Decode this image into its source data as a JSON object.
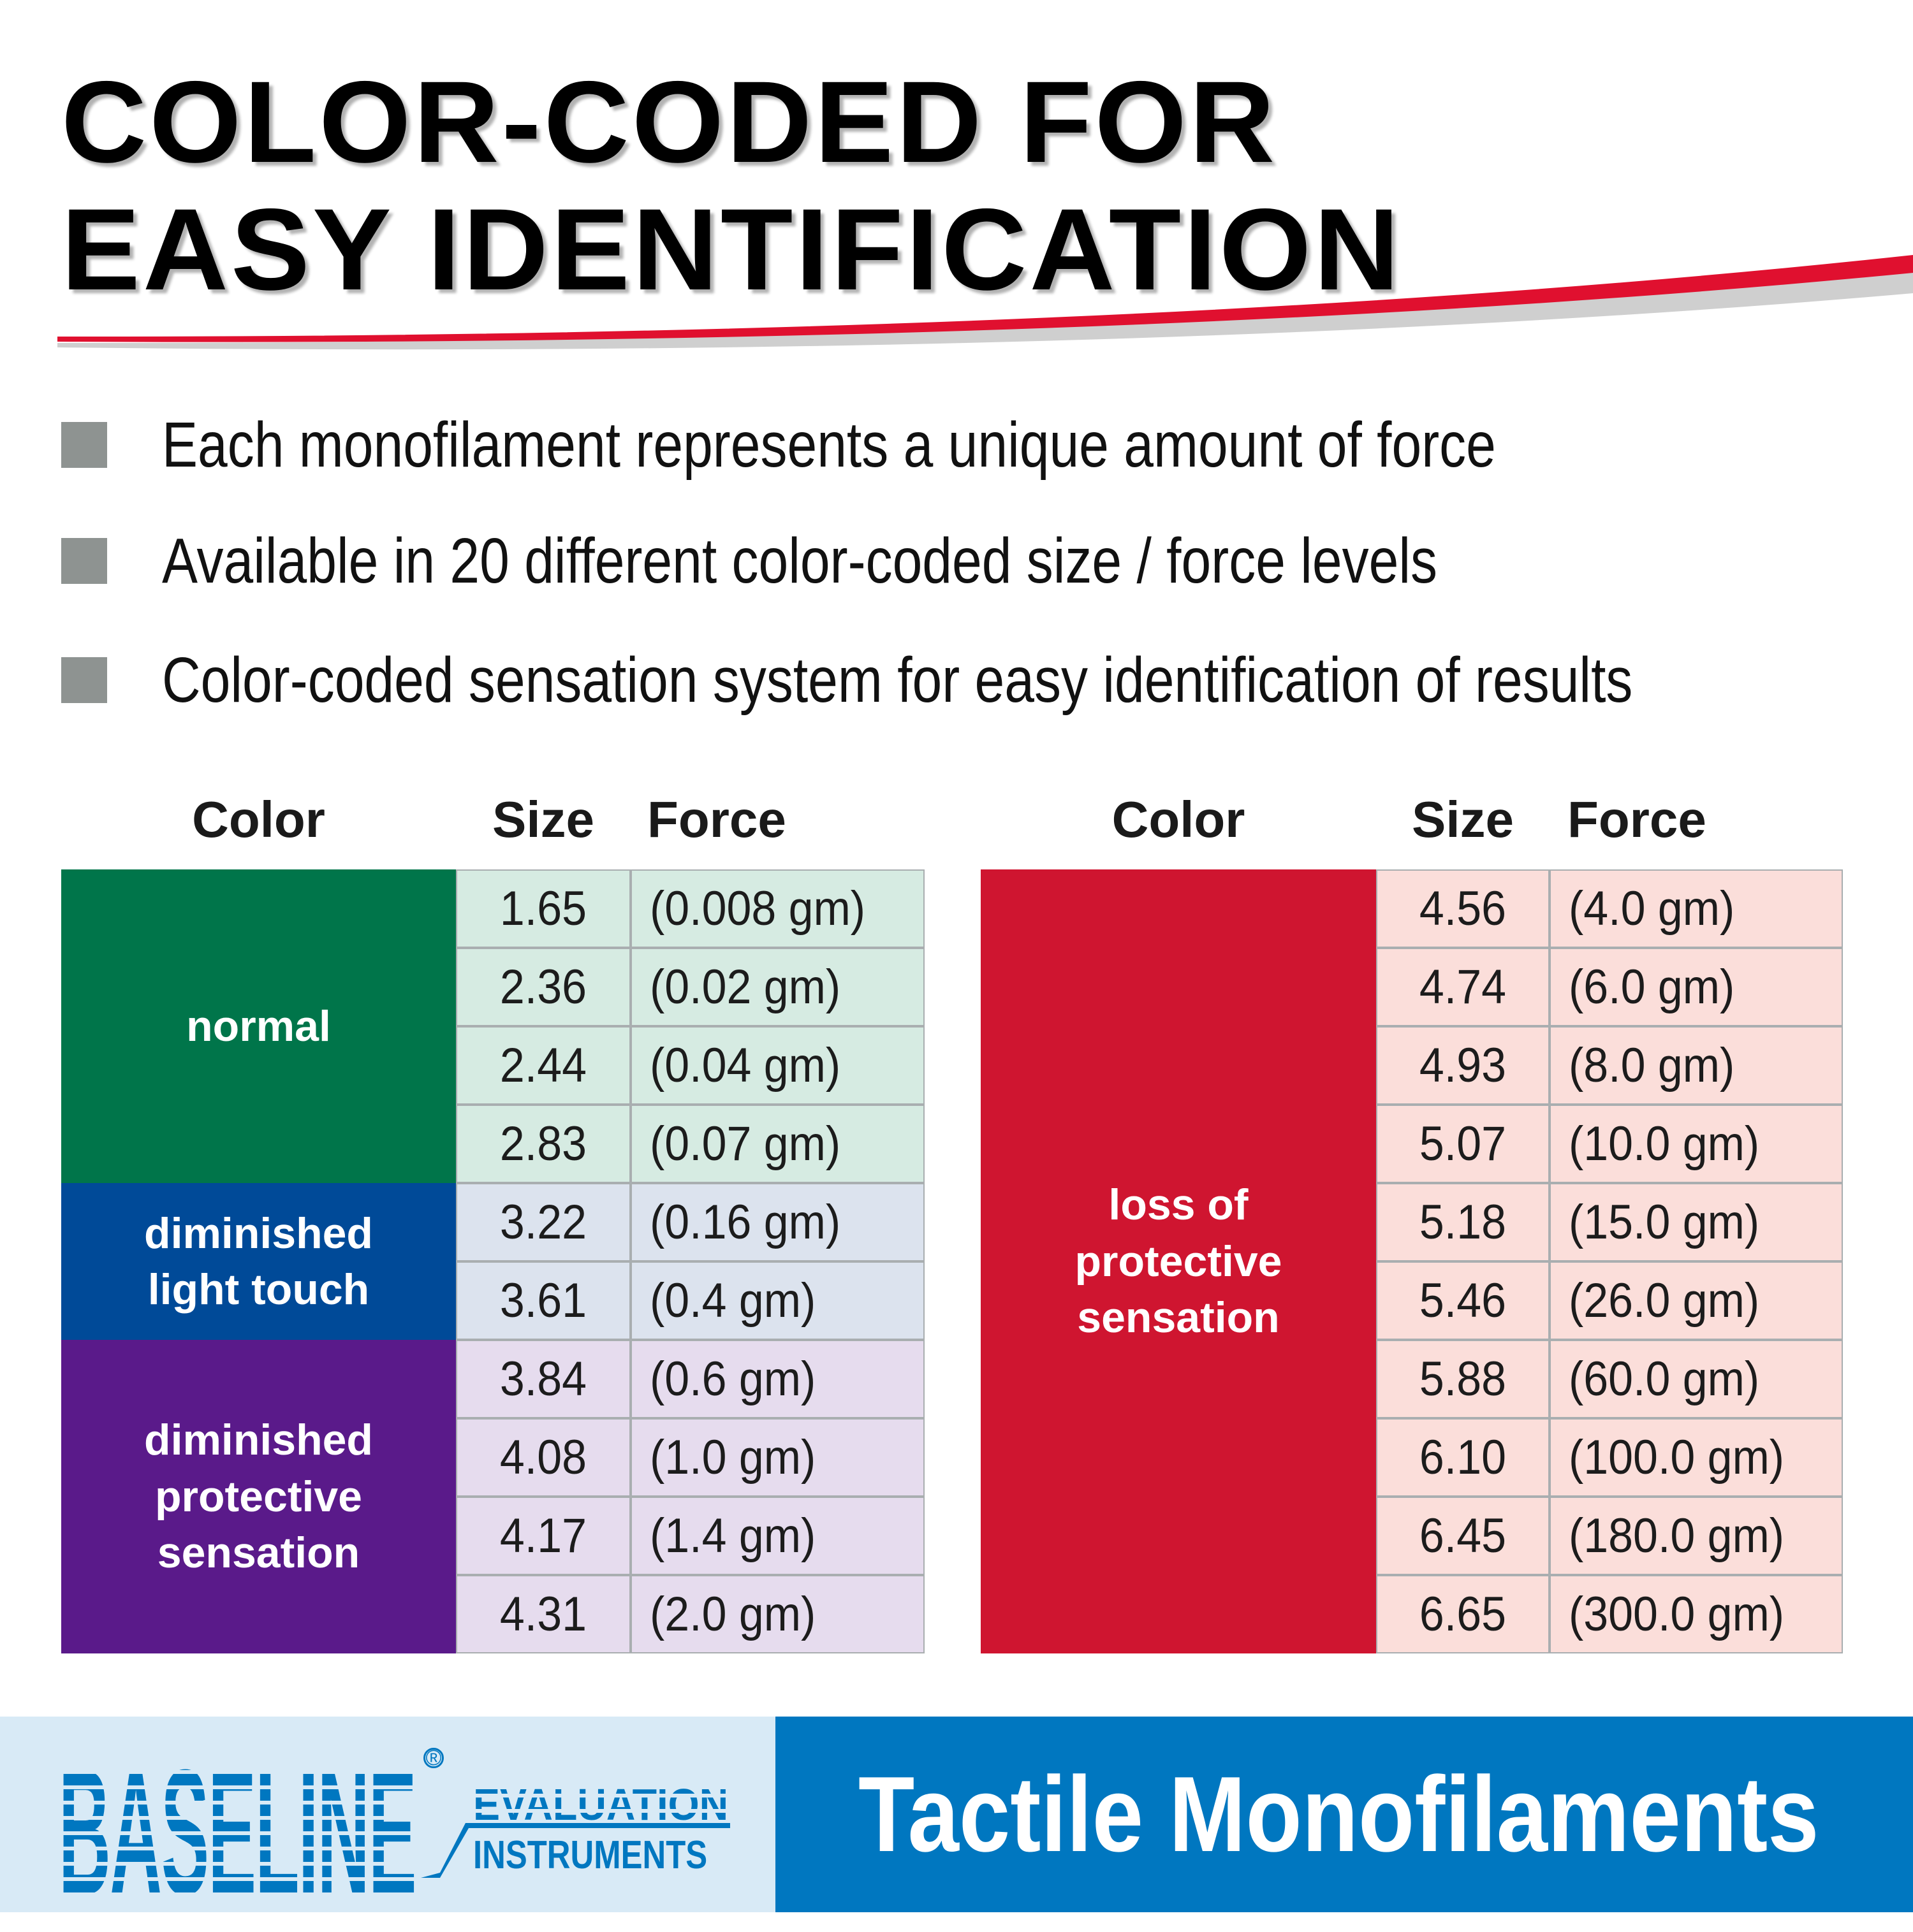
{
  "title": {
    "line1": "COLOR-CODED FOR",
    "line2": "EASY IDENTIFICATION"
  },
  "accent_color": "#e0102f",
  "bullets": [
    "Each monofilament represents a unique amount of force",
    "Available in 20 different color-coded size / force levels",
    "Color-coded sensation system for easy identification of results"
  ],
  "table_headers": {
    "color": "Color",
    "size": "Size",
    "force": "Force"
  },
  "left_table": {
    "groups": [
      {
        "label": "normal",
        "color": "#00754a",
        "light": "#d6ebe2"
      },
      {
        "label": "diminished light touch",
        "color": "#004a98",
        "light": "#dce3ee"
      },
      {
        "label": "diminished protective sensation",
        "color": "#5a1a8a",
        "light": "#e6dcee"
      }
    ],
    "rows": [
      {
        "size": "1.65",
        "force": "(0.008 gm)",
        "group": 0
      },
      {
        "size": "2.36",
        "force": "(0.02 gm)",
        "group": 0
      },
      {
        "size": "2.44",
        "force": "(0.04 gm)",
        "group": 0
      },
      {
        "size": "2.83",
        "force": "(0.07 gm)",
        "group": 0
      },
      {
        "size": "3.22",
        "force": "(0.16 gm)",
        "group": 1
      },
      {
        "size": "3.61",
        "force": "(0.4 gm)",
        "group": 1
      },
      {
        "size": "3.84",
        "force": "(0.6 gm)",
        "group": 2
      },
      {
        "size": "4.08",
        "force": "(1.0 gm)",
        "group": 2
      },
      {
        "size": "4.17",
        "force": "(1.4 gm)",
        "group": 2
      },
      {
        "size": "4.31",
        "force": "(2.0 gm)",
        "group": 2
      }
    ]
  },
  "right_table": {
    "groups": [
      {
        "label": "loss of protective sensation",
        "color": "#cf1530",
        "light": "#fbdeda"
      }
    ],
    "rows": [
      {
        "size": "4.56",
        "force": "(4.0 gm)",
        "group": 0
      },
      {
        "size": "4.74",
        "force": "(6.0 gm)",
        "group": 0
      },
      {
        "size": "4.93",
        "force": "(8.0 gm)",
        "group": 0
      },
      {
        "size": "5.07",
        "force": "(10.0 gm)",
        "group": 0
      },
      {
        "size": "5.18",
        "force": "(15.0 gm)",
        "group": 0
      },
      {
        "size": "5.46",
        "force": "(26.0 gm)",
        "group": 0
      },
      {
        "size": "5.88",
        "force": "(60.0 gm)",
        "group": 0
      },
      {
        "size": "6.10",
        "force": "(100.0 gm)",
        "group": 0
      },
      {
        "size": "6.45",
        "force": "(180.0 gm)",
        "group": 0
      },
      {
        "size": "6.65",
        "force": "(300.0 gm)",
        "group": 0
      }
    ]
  },
  "footer": {
    "logo": {
      "brand": "BASELINE",
      "line1": "EVALUATION",
      "line2": "INSTRUMENTS",
      "reg": "®"
    },
    "product": "Tactile Monofilaments"
  }
}
